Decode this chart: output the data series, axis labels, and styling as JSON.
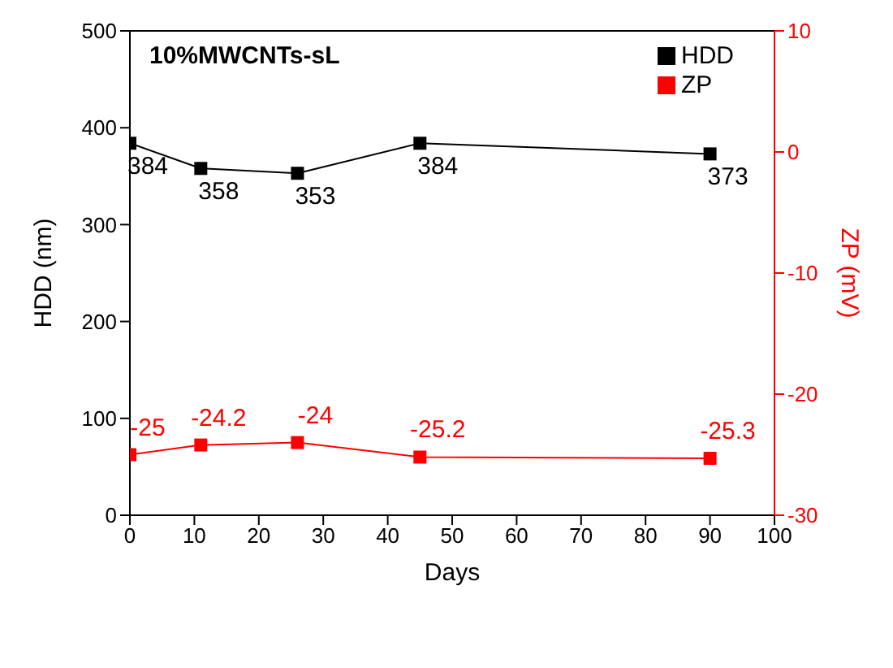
{
  "chart_data": {
    "type": "line",
    "title": "10%MWCNTs-sL",
    "xlabel": "Days",
    "ylabel": "HDD (nm)",
    "y2label": "ZP (mV)",
    "x": [
      0,
      11,
      26,
      45,
      90
    ],
    "series": [
      {
        "name": "HDD",
        "color": "#000000",
        "values": [
          384,
          358,
          353,
          384,
          373
        ]
      },
      {
        "name": "ZP",
        "color": "#ff0000",
        "axis": "y2",
        "values": [
          -25,
          -24.2,
          -24,
          -25.2,
          -25.3
        ]
      }
    ],
    "xlim": [
      0,
      100
    ],
    "xticks": [
      0,
      10,
      20,
      30,
      40,
      50,
      60,
      70,
      80,
      90,
      100
    ],
    "ylim": [
      0,
      500
    ],
    "yticks": [
      0,
      100,
      200,
      300,
      400,
      500
    ],
    "y2lim": [
      -30,
      10
    ],
    "y2ticks": [
      -30,
      -20,
      -10,
      0,
      10
    ],
    "marker": "square",
    "line_style": "solid",
    "data_labels": true,
    "grid": false,
    "legend": "top right"
  }
}
